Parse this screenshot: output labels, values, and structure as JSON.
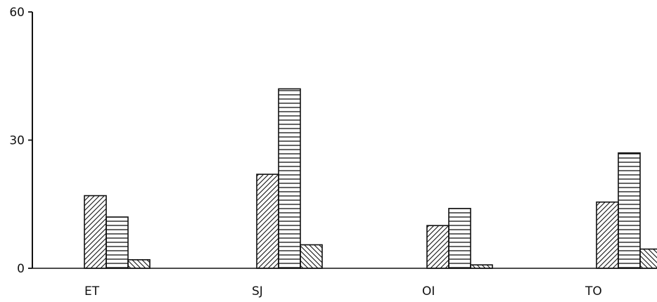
{
  "chart_data": {
    "type": "bar",
    "title": "",
    "xlabel": "",
    "ylabel": "",
    "ylim": [
      0,
      60
    ],
    "yticks": [
      0,
      30,
      60
    ],
    "categories": [
      "ET",
      "SJ",
      "OI",
      "TO"
    ],
    "series": [
      {
        "pattern": "diagonal-forward",
        "values": [
          17,
          22,
          10,
          15.5
        ]
      },
      {
        "pattern": "horizontal-lines",
        "values": [
          12,
          42,
          14,
          27
        ]
      },
      {
        "pattern": "diagonal-backward",
        "values": [
          2,
          5.5,
          0.8,
          4.5
        ]
      }
    ],
    "legend": false,
    "grid": false
  },
  "colors": {
    "ink": "#111111",
    "background": "#ffffff"
  }
}
